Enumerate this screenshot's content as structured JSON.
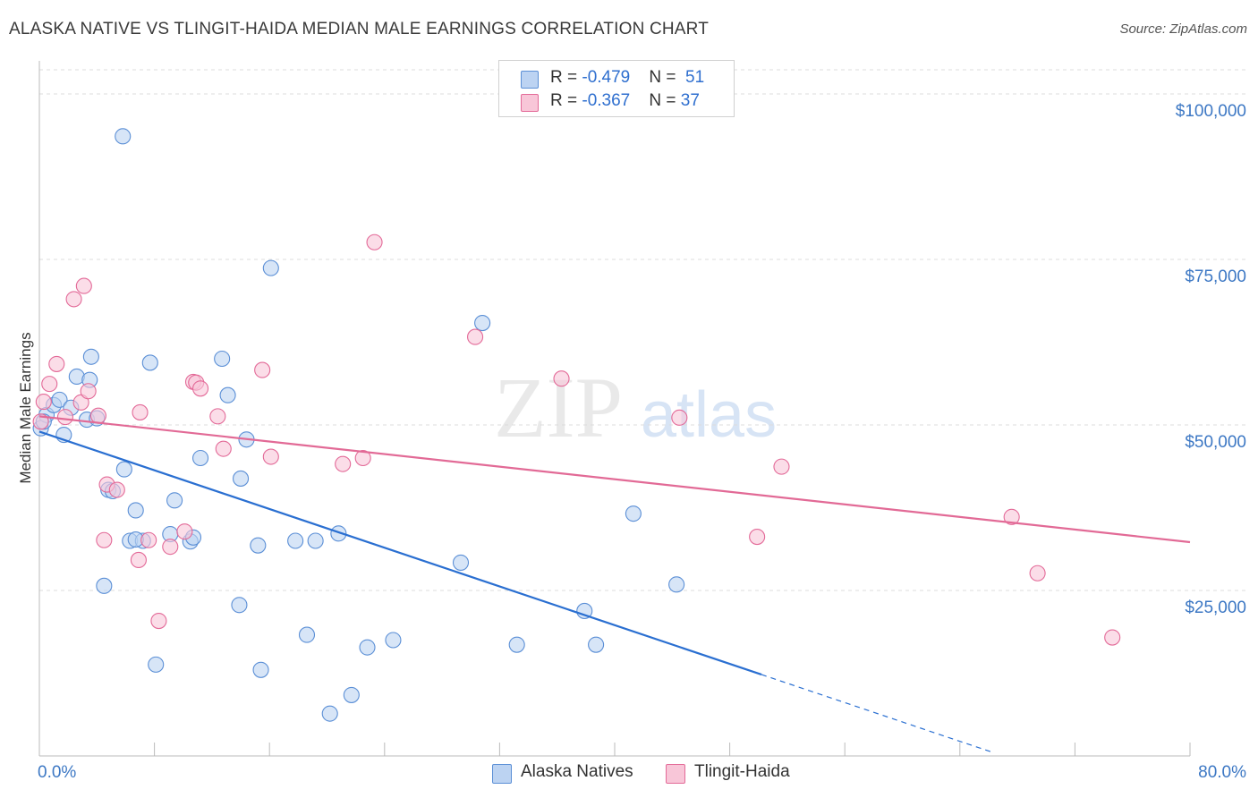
{
  "title": "ALASKA NATIVE VS TLINGIT-HAIDA MEDIAN MALE EARNINGS CORRELATION CHART",
  "source": "Source: ZipAtlas.com",
  "watermark": {
    "zip": "ZIP",
    "atlas": "atlas"
  },
  "colors": {
    "blue": "#5b8fd6",
    "blue_fill": "#bcd3f2",
    "blue_line": "#2a6fd1",
    "pink": "#e36a98",
    "pink_fill": "#f8c6d8",
    "pink_line": "#e26a96",
    "tick_text": "#3d78c4",
    "grid": "#dcdcdc"
  },
  "legend": {
    "rows": [
      {
        "r_label": "R = ",
        "r_value": "-0.479",
        "n_label": "N = ",
        "n_value": "51"
      },
      {
        "r_label": "R = ",
        "r_value": "-0.367",
        "n_label": "N = ",
        "n_value": "37"
      }
    ]
  },
  "bottom_legend": {
    "series1": "Alaska Natives",
    "series2": "Tlingit-Haida"
  },
  "chart_data": {
    "type": "scatter",
    "title": "ALASKA NATIVE VS TLINGIT-HAIDA MEDIAN MALE EARNINGS CORRELATION CHART",
    "xlabel": "",
    "ylabel": "Median Male Earnings",
    "xlim": [
      0,
      80
    ],
    "ylim": [
      0,
      105000
    ],
    "x_tick_labels": [
      "0.0%",
      "80.0%"
    ],
    "y_ticks": [
      25000,
      50000,
      75000,
      100000
    ],
    "y_tick_labels": [
      "$25,000",
      "$50,000",
      "$75,000",
      "$100,000"
    ],
    "series": [
      {
        "name": "Alaska Natives",
        "r": -0.479,
        "n": 51,
        "trend": {
          "x0": 0,
          "y0": 49000,
          "x1": 50.2,
          "y1": 12300,
          "dashed_to_x": 66.3
        },
        "points": [
          [
            0.1,
            49500
          ],
          [
            0.5,
            51500
          ],
          [
            1.0,
            53000
          ],
          [
            1.4,
            53800
          ],
          [
            1.7,
            48500
          ],
          [
            2.2,
            52600
          ],
          [
            2.6,
            57300
          ],
          [
            3.3,
            50800
          ],
          [
            3.5,
            56800
          ],
          [
            3.6,
            60300
          ],
          [
            4.0,
            51000
          ],
          [
            4.5,
            25700
          ],
          [
            4.8,
            40200
          ],
          [
            5.1,
            40000
          ],
          [
            5.8,
            93600
          ],
          [
            5.9,
            43300
          ],
          [
            6.3,
            32500
          ],
          [
            6.7,
            37100
          ],
          [
            7.2,
            32500
          ],
          [
            7.7,
            59400
          ],
          [
            8.1,
            13800
          ],
          [
            9.1,
            33500
          ],
          [
            9.4,
            38600
          ],
          [
            10.5,
            32400
          ],
          [
            10.7,
            33000
          ],
          [
            11.2,
            45000
          ],
          [
            12.7,
            60000
          ],
          [
            13.1,
            54500
          ],
          [
            13.9,
            22800
          ],
          [
            14.4,
            47800
          ],
          [
            14.0,
            41900
          ],
          [
            15.2,
            31800
          ],
          [
            15.4,
            13000
          ],
          [
            16.1,
            73700
          ],
          [
            17.8,
            32500
          ],
          [
            18.6,
            18300
          ],
          [
            19.2,
            32500
          ],
          [
            20.2,
            6400
          ],
          [
            20.8,
            33600
          ],
          [
            21.7,
            9200
          ],
          [
            22.8,
            16400
          ],
          [
            24.6,
            17500
          ],
          [
            29.3,
            29200
          ],
          [
            30.8,
            65400
          ],
          [
            33.2,
            16800
          ],
          [
            37.9,
            21900
          ],
          [
            38.7,
            16800
          ],
          [
            41.3,
            36600
          ],
          [
            44.3,
            25900
          ],
          [
            0.3,
            50500
          ],
          [
            6.7,
            32700
          ]
        ]
      },
      {
        "name": "Tlingit-Haida",
        "r": -0.367,
        "n": 37,
        "trend": {
          "x0": 0,
          "y0": 51300,
          "x1": 80,
          "y1": 32300
        },
        "points": [
          [
            0.1,
            50500
          ],
          [
            0.3,
            53500
          ],
          [
            0.7,
            56200
          ],
          [
            1.2,
            59200
          ],
          [
            1.8,
            51200
          ],
          [
            2.4,
            69000
          ],
          [
            2.9,
            53400
          ],
          [
            3.1,
            71000
          ],
          [
            3.4,
            55100
          ],
          [
            4.1,
            51400
          ],
          [
            4.5,
            32600
          ],
          [
            4.7,
            41000
          ],
          [
            5.4,
            40200
          ],
          [
            6.9,
            29600
          ],
          [
            7.0,
            51900
          ],
          [
            7.6,
            32600
          ],
          [
            8.3,
            20400
          ],
          [
            9.1,
            31600
          ],
          [
            10.1,
            33900
          ],
          [
            10.7,
            56500
          ],
          [
            10.9,
            56400
          ],
          [
            11.2,
            55500
          ],
          [
            12.4,
            51300
          ],
          [
            12.8,
            46400
          ],
          [
            15.5,
            58300
          ],
          [
            16.1,
            45200
          ],
          [
            21.1,
            44100
          ],
          [
            22.5,
            45000
          ],
          [
            23.3,
            77600
          ],
          [
            30.3,
            63300
          ],
          [
            36.3,
            57000
          ],
          [
            44.5,
            51100
          ],
          [
            49.9,
            33100
          ],
          [
            51.6,
            43700
          ],
          [
            67.6,
            36100
          ],
          [
            69.4,
            27600
          ],
          [
            74.6,
            17900
          ]
        ]
      }
    ]
  }
}
